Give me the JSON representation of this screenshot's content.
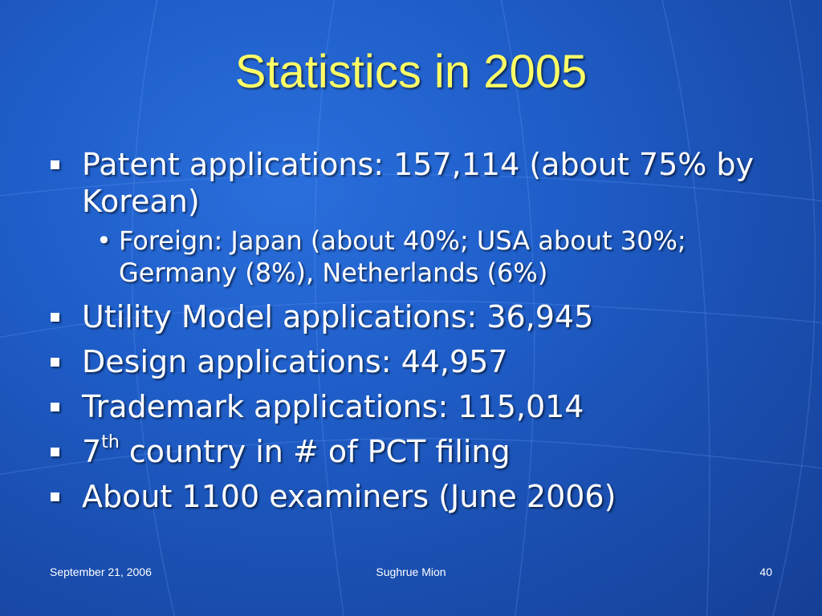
{
  "slide": {
    "title": "Statistics in 2005",
    "bullets": {
      "patent": "Patent applications: 157,114 (about 75% by Korean)",
      "patent_foreign": "Foreign: Japan (about 40%; USA about 30%; Germany (8%), Netherlands (6%)",
      "utility": "Utility Model applications: 36,945",
      "design": "Design applications: 44,957",
      "trademark": "Trademark applications: 115,014",
      "pct_number": "7",
      "pct_superscript": "th",
      "pct_rest": " country in # of PCT filing",
      "examiners": "About 1100 examiners (June 2006)"
    },
    "footer": {
      "date": "September 21, 2006",
      "author": "Sughrue Mion",
      "page_number": "40"
    }
  },
  "colors": {
    "title": "#ffff66",
    "text": "#ffffff",
    "background": "#1f5ec9"
  }
}
